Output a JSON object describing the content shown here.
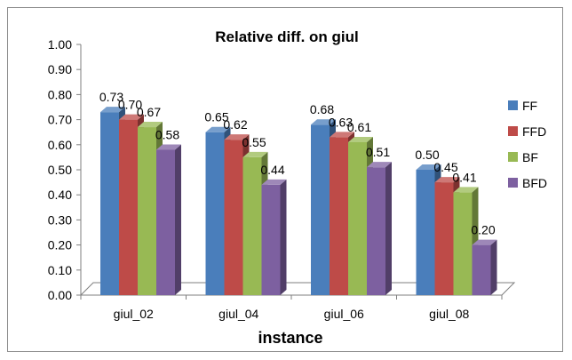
{
  "chart_data": {
    "type": "bar",
    "title": "Relative diff. on giul",
    "xlabel": "instance",
    "ylabel": "",
    "ylim": [
      0,
      1
    ],
    "yticks": [
      "0.00",
      "0.10",
      "0.20",
      "0.30",
      "0.40",
      "0.50",
      "0.60",
      "0.70",
      "0.80",
      "0.90",
      "1.00"
    ],
    "categories": [
      "giul_02",
      "giul_04",
      "giul_06",
      "giul_08"
    ],
    "series": [
      {
        "name": "FF",
        "color": "#4a7ebb",
        "values": [
          0.73,
          0.65,
          0.68,
          0.5
        ],
        "labels": [
          "0.73",
          "0.65",
          "0.68",
          "0.50"
        ]
      },
      {
        "name": "FFD",
        "color": "#be4b48",
        "values": [
          0.7,
          0.62,
          0.63,
          0.45
        ],
        "labels": [
          "0.70",
          "0.62",
          "0.63",
          "0.45"
        ]
      },
      {
        "name": "BF",
        "color": "#98b954",
        "values": [
          0.67,
          0.55,
          0.61,
          0.41
        ],
        "labels": [
          "0.67",
          "0.55",
          "0.61",
          "0.41"
        ]
      },
      {
        "name": "BFD",
        "color": "#7d60a0",
        "values": [
          0.58,
          0.44,
          0.51,
          0.2
        ],
        "labels": [
          "0.58",
          "0.44",
          "0.51",
          "0.20"
        ]
      }
    ],
    "grid": false,
    "legend": "right"
  }
}
